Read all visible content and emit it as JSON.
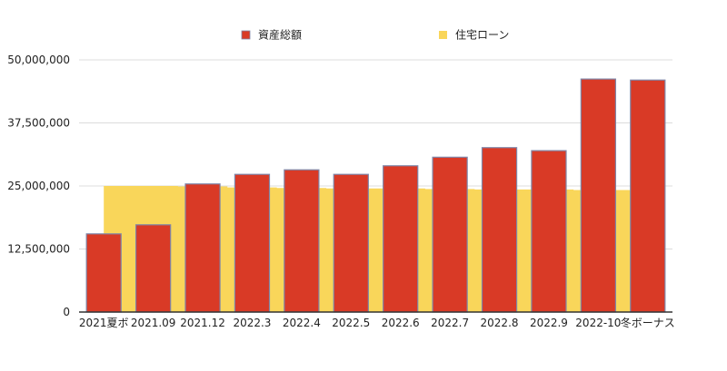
{
  "chart_data": {
    "type": "bar",
    "categories": [
      "2021夏ボ",
      "2021.09",
      "2021.12",
      "2022.3",
      "2022.4",
      "2022.5",
      "2022.6",
      "2022.7",
      "2022.8",
      "2022.9",
      "2022-10",
      "冬ボーナス"
    ],
    "series": [
      {
        "name": "資産総額",
        "type": "bar",
        "color": "#d93a26",
        "values": [
          15500000,
          17300000,
          25400000,
          27300000,
          28200000,
          27300000,
          29000000,
          30700000,
          32600000,
          32000000,
          46200000,
          46000000
        ]
      },
      {
        "name": "住宅ローン",
        "type": "area",
        "color": "#f9d65a",
        "values": [
          25000000,
          25000000,
          24900000,
          24700000,
          24600000,
          24500000,
          24500000,
          24400000,
          24300000,
          24300000,
          24200000,
          24200000
        ]
      }
    ],
    "yticks": [
      "0",
      "12,500,000",
      "25,000,000",
      "37,500,000",
      "50,000,000"
    ],
    "ylim": [
      0,
      50000000
    ],
    "grid": true,
    "legend_position": "top-center"
  }
}
